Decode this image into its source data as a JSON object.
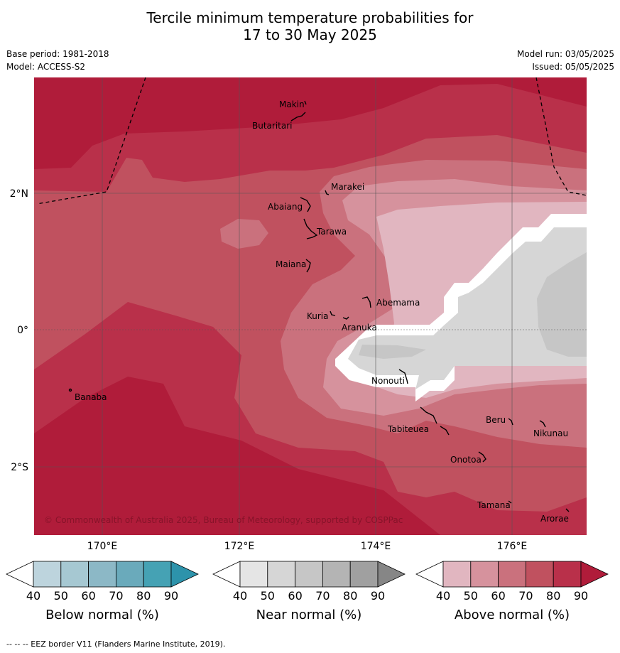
{
  "title_line1": "Tercile minimum temperature probabilities for",
  "title_line2": "17 to 30 May 2025",
  "base_period": "Base period: 1981-2018",
  "model": "Model: ACCESS-S2",
  "model_run": "Model run: 03/05/2025",
  "issued": "Issued: 05/05/2025",
  "copyright": "© Commonwealth of Australia 2025, Bureau of Meteorology, supported by COSPPac",
  "map": {
    "lat_labels": [
      "2°N",
      "0°",
      "2°S"
    ],
    "lon_labels": [
      "170°E",
      "172°E",
      "174°E",
      "176°E"
    ],
    "places": [
      "Makin",
      "Butaritari",
      "Marakei",
      "Abaiang",
      "Tarawa",
      "Maiana",
      "Abemama",
      "Kuria",
      "Aranuka",
      "Nonouti",
      "Banaba",
      "Tabiteuea",
      "Beru",
      "Nikunau",
      "Onotoa",
      "Tamana",
      "Arorae"
    ]
  },
  "colorbars": [
    {
      "label": "Below normal (%)",
      "ticks": [
        "40",
        "50",
        "60",
        "70",
        "80",
        "90"
      ],
      "colors": [
        "#ffffff",
        "#bdd4dd",
        "#a6c8d2",
        "#8cb8c6",
        "#6aaabb",
        "#45a2b4",
        "#2d93ab"
      ]
    },
    {
      "label": "Near normal (%)",
      "ticks": [
        "40",
        "50",
        "60",
        "70",
        "80",
        "90"
      ],
      "colors": [
        "#ffffff",
        "#e5e5e5",
        "#d6d6d6",
        "#c6c6c6",
        "#b4b4b4",
        "#a0a0a0",
        "#868686"
      ]
    },
    {
      "label": "Above normal (%)",
      "ticks": [
        "40",
        "50",
        "60",
        "70",
        "80",
        "90"
      ],
      "colors": [
        "#ffffff",
        "#e1b6c0",
        "#d6929d",
        "#ca717d",
        "#c0515f",
        "#b9304a",
        "#b01c3a"
      ]
    }
  ],
  "legend_note": "-- EEZ border V11 (Flanders Marine Institute, 2019)."
}
